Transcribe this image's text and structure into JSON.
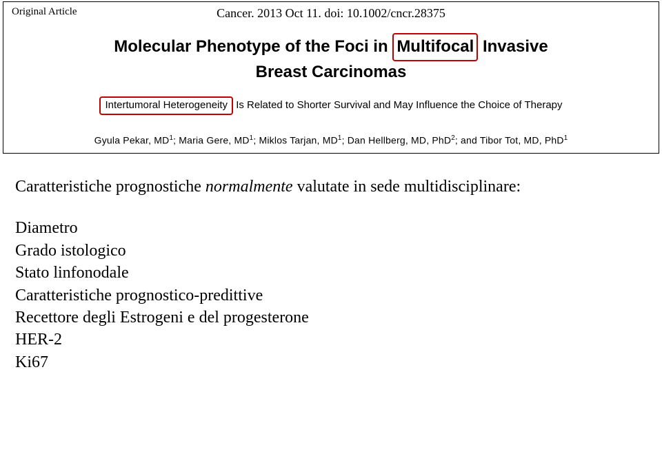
{
  "header": {
    "original_article_label": "Original Article",
    "citation": "Cancer. 2013 Oct 11. doi: 10.1002/cncr.28375",
    "title_pre": "Molecular Phenotype of the Foci in ",
    "title_boxed": "Multifocal",
    "title_post": " Invasive",
    "title_line2": "Breast Carcinomas",
    "subtitle_boxed": "Intertumoral Heterogeneity",
    "subtitle_rest": " Is Related to Shorter Survival and May Influence the Choice of Therapy",
    "authors_html": "Gyula Pekar, MD<sup>1</sup>; Maria Gere, MD<sup>1</sup>; Miklos Tarjan, MD<sup>1</sup>; Dan Hellberg, MD, PhD<sup>2</sup>; and Tibor Tot, MD, PhD<sup>1</sup>"
  },
  "body": {
    "intro_pre": "Caratteristiche prognostiche ",
    "intro_italic": "normalmente",
    "intro_post": " valutate in sede multidisciplinare:",
    "items": [
      "Diametro",
      "Grado istologico",
      "Stato linfonodale",
      "Caratteristiche prognostico-predittive",
      "Recettore degli Estrogeni e del progesterone",
      "HER-2",
      "Ki67"
    ]
  },
  "colors": {
    "highlight_border": "#c00000",
    "text": "#000000",
    "background": "#ffffff"
  }
}
